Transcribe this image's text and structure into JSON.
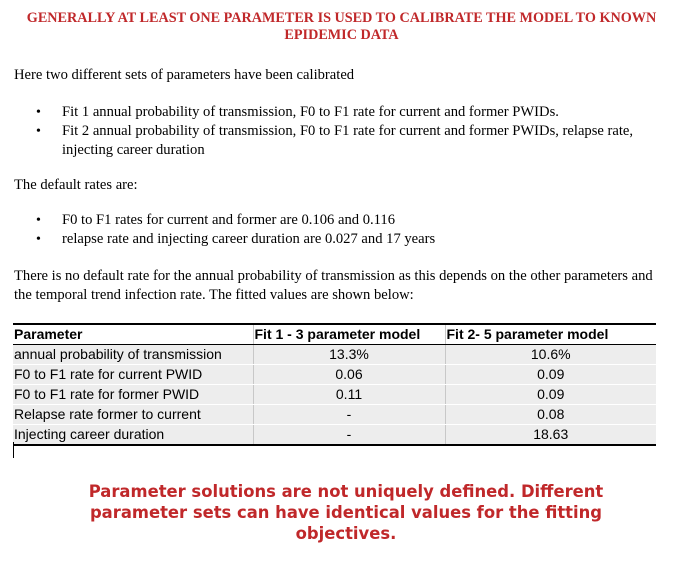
{
  "title": "GENERALLY AT LEAST ONE PARAMETER IS USED TO CALIBRATE THE MODEL TO KNOWN EPIDEMIC DATA",
  "intro": "Here two different sets of parameters have been calibrated",
  "fits": [
    "Fit 1 annual probability of transmission,  F0 to F1 rate for current and former PWIDs.",
    "Fit 2 annual probability of transmission,  F0 to F1 rate for current and former PWIDs, relapse rate, injecting career duration"
  ],
  "defaults_heading": "The default rates are:",
  "defaults": [
    "F0 to F1 rates for current and former are 0.106 and 0.116",
    "relapse rate and injecting career duration are 0.027 and 17 years"
  ],
  "explanation": "There is no default rate for the annual probability of transmission as this depends on the other parameters and the temporal trend infection rate. The fitted values are shown below:",
  "table": {
    "headers": [
      "Parameter",
      "Fit 1 - 3 parameter model",
      "Fit 2- 5 parameter model"
    ],
    "rows": [
      [
        "annual probability of transmission",
        "13.3%",
        "10.6%"
      ],
      [
        "F0 to F1 rate for current PWID",
        "0.06",
        "0.09"
      ],
      [
        "F0 to F1 rate for former PWID",
        "0.11",
        "0.09"
      ],
      [
        "Relapse rate former to current",
        "-",
        "0.08"
      ],
      [
        "Injecting career duration",
        "-",
        "18.63"
      ]
    ]
  },
  "note": "Parameter solutions are not uniquely defined. Different parameter sets can have identical values for the fitting objectives."
}
